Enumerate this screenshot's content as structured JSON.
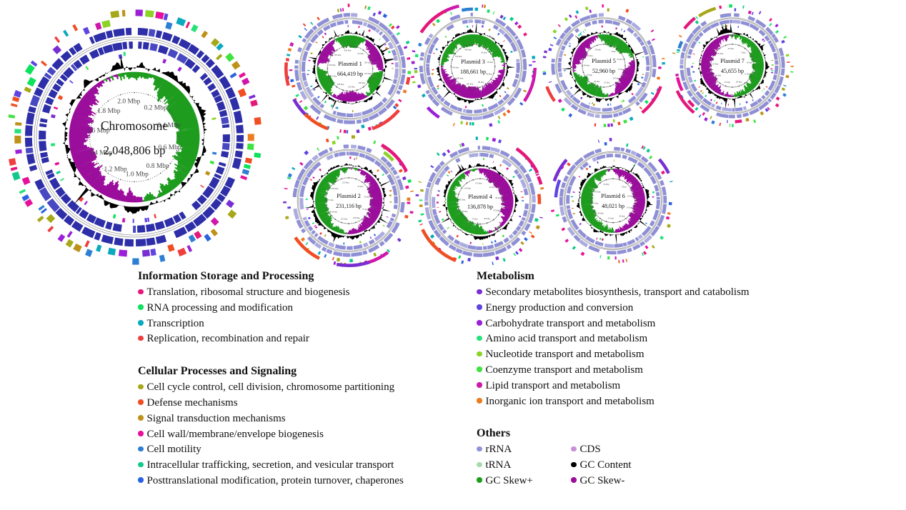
{
  "chart_data": {
    "type": "circular-genome-map",
    "rings_outer_to_inner": [
      "COG category genes",
      "CDS",
      "GC Content",
      "GC Skew+ / GC Skew-"
    ],
    "colors": {
      "gc_content": "#000000",
      "gc_skew_plus": "#1E9C1E",
      "gc_skew_minus": "#9B0D9B",
      "cds_chromosome": "#2E2EA8",
      "cds_plasmid": "#8F8FD6"
    },
    "replicons": [
      {
        "name": "Chromosome",
        "size_label": "2,048,806 bp",
        "size_bp": 2048806,
        "ticks": [
          {
            "label": "0.2 Mbp",
            "mbp": 0.2
          },
          {
            "label": "0.4 Mbp",
            "mbp": 0.4
          },
          {
            "label": "0.6 Mbp",
            "mbp": 0.6
          },
          {
            "label": "0.8 Mbp",
            "mbp": 0.8
          },
          {
            "label": "1.0 Mbp",
            "mbp": 1.0
          },
          {
            "label": "1.2 Mbp",
            "mbp": 1.2
          },
          {
            "label": "1.4 Mbp",
            "mbp": 1.4
          },
          {
            "label": "1.6 Mbp",
            "mbp": 1.6
          },
          {
            "label": "1.8 Mbp",
            "mbp": 1.8
          },
          {
            "label": "2.0 Mbp",
            "mbp": 2.0
          }
        ]
      },
      {
        "name": "Plasmid 1",
        "size_label": "664,419 bp",
        "size_bp": 664419
      },
      {
        "name": "Plasmid 2",
        "size_label": "231,116 bp",
        "size_bp": 231116
      },
      {
        "name": "Plasmid 3",
        "size_label": "188,661 bp",
        "size_bp": 188661
      },
      {
        "name": "Plasmid 4",
        "size_label": "136,878 bp",
        "size_bp": 136878
      },
      {
        "name": "Plasmid 5",
        "size_label": "52,960 bp",
        "size_bp": 52960
      },
      {
        "name": "Plasmid 6",
        "size_label": "48,021 bp",
        "size_bp": 48021
      },
      {
        "name": "Plasmid 7",
        "size_label": "45,655 bp",
        "size_bp": 45655
      }
    ]
  },
  "legend": {
    "sections": [
      {
        "title": "Information Storage and Processing",
        "column": "left",
        "items": [
          {
            "color": "#E5177B",
            "label": "Translation, ribosomal structure and biogenesis"
          },
          {
            "color": "#0CE25C",
            "label": "RNA processing and modification"
          },
          {
            "color": "#09A9BE",
            "label": "Transcription"
          },
          {
            "color": "#EF3E3E",
            "label": "Replication, recombination and repair"
          }
        ]
      },
      {
        "title": "Cellular Processes and Signaling",
        "column": "left",
        "items": [
          {
            "color": "#A6A819",
            "label": "Cell cycle control, cell division, chromosome partitioning"
          },
          {
            "color": "#F04E23",
            "label": "Defense mechanisms"
          },
          {
            "color": "#BE9118",
            "label": "Signal transduction mechanisms"
          },
          {
            "color": "#E8109A",
            "label": "Cell wall/membrane/envelope biogenesis"
          },
          {
            "color": "#2D7FD3",
            "label": "Cell motility"
          },
          {
            "color": "#10C98B",
            "label": "Intracellular trafficking, secretion, and vesicular transport"
          },
          {
            "color": "#2B62E0",
            "label": "Posttranslational modification, protein turnover, chaperones"
          }
        ]
      },
      {
        "title": "Metabolism",
        "column": "right",
        "items": [
          {
            "color": "#7A2ED2",
            "label": "Secondary metabolites biosynthesis, transport and catabolism"
          },
          {
            "color": "#5E45E2",
            "label": "Energy production and conversion"
          },
          {
            "color": "#9A20D8",
            "label": "Carbohydrate transport and metabolism"
          },
          {
            "color": "#25E27A",
            "label": "Amino acid transport and metabolism"
          },
          {
            "color": "#8BD426",
            "label": "Nucleotide transport and metabolism"
          },
          {
            "color": "#3FE23F",
            "label": "Coenzyme transport and metabolism"
          },
          {
            "color": "#CE17AB",
            "label": "Lipid transport and metabolism"
          },
          {
            "color": "#EC7C1F",
            "label": "Inorganic ion transport and metabolism"
          }
        ]
      },
      {
        "title": "Others",
        "column": "right",
        "columns": 2,
        "items": [
          {
            "color": "#9292DB",
            "label": "rRNA"
          },
          {
            "color": "#A9D9AC",
            "label": "tRNA"
          },
          {
            "color": "#1E9C1E",
            "label": "GC Skew+"
          },
          {
            "color": "#C98FD9",
            "label": "CDS"
          },
          {
            "color": "#000000",
            "label": "GC Content"
          },
          {
            "color": "#9B0D9B",
            "label": "GC Skew-"
          }
        ]
      }
    ]
  }
}
